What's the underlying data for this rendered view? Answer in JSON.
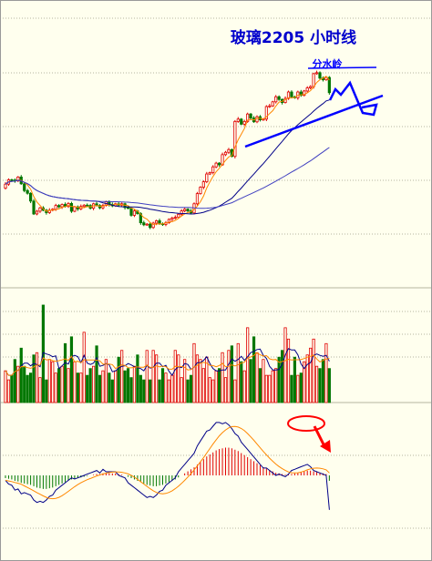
{
  "chart_data": {
    "type": "candlestick",
    "title": "玻璃2205  小时线",
    "annotation": "分水岭",
    "colors": {
      "background": "#ffffee",
      "up": "#e00000",
      "down": "#007700",
      "ma_fast": "#ff8800",
      "ma_slow": "#000088",
      "annotation_line": "#0000ff",
      "title": "#0000cc",
      "highlight": "#ff0000",
      "grid": "#b4b4a0"
    },
    "candles": {
      "close": [
        2290,
        2303,
        2302,
        2300,
        2311,
        2291,
        2271,
        2263,
        2240,
        2202,
        2210,
        2220,
        2213,
        2206,
        2213,
        2216,
        2227,
        2223,
        2230,
        2224,
        2233,
        2210,
        2223,
        2217,
        2224,
        2228,
        2227,
        2219,
        2232,
        2227,
        2220,
        2227,
        2238,
        2230,
        2226,
        2232,
        2228,
        2232,
        2221,
        2219,
        2198,
        2211,
        2203,
        2176,
        2170,
        2172,
        2162,
        2175,
        2182,
        2173,
        2171,
        2176,
        2186,
        2190,
        2192,
        2201,
        2211,
        2216,
        2211,
        2205,
        2232,
        2262,
        2281,
        2297,
        2320,
        2324,
        2341,
        2352,
        2347,
        2377,
        2384,
        2392,
        2372,
        2475,
        2482,
        2467,
        2475,
        2497,
        2485,
        2474,
        2489,
        2480,
        2482,
        2519,
        2521,
        2533,
        2548,
        2540,
        2531,
        2543,
        2562,
        2548,
        2545,
        2562,
        2552,
        2565,
        2574,
        2578,
        2616,
        2619,
        2603,
        2598,
        2605,
        2560
      ],
      "open": [
        2278,
        2290,
        2303,
        2302,
        2300,
        2311,
        2291,
        2271,
        2263,
        2240,
        2202,
        2210,
        2220,
        2213,
        2206,
        2213,
        2216,
        2227,
        2223,
        2230,
        2224,
        2233,
        2210,
        2223,
        2217,
        2224,
        2228,
        2227,
        2219,
        2232,
        2227,
        2220,
        2227,
        2238,
        2230,
        2226,
        2232,
        2228,
        2232,
        2221,
        2219,
        2198,
        2211,
        2203,
        2176,
        2170,
        2172,
        2162,
        2175,
        2182,
        2173,
        2171,
        2176,
        2186,
        2190,
        2192,
        2201,
        2211,
        2216,
        2211,
        2205,
        2232,
        2262,
        2281,
        2297,
        2320,
        2324,
        2341,
        2352,
        2347,
        2377,
        2384,
        2392,
        2372,
        2475,
        2482,
        2467,
        2475,
        2497,
        2485,
        2474,
        2489,
        2480,
        2482,
        2519,
        2521,
        2533,
        2548,
        2540,
        2531,
        2543,
        2562,
        2548,
        2545,
        2562,
        2552,
        2565,
        2574,
        2578,
        2616,
        2619,
        2603,
        2598,
        2605
      ],
      "high_pad": [
        6,
        4,
        3,
        5,
        3,
        6,
        4,
        5,
        3,
        6,
        4,
        3,
        5,
        4,
        6,
        3,
        5,
        4,
        3,
        6,
        4,
        5,
        3,
        4,
        6,
        3,
        5,
        4,
        3,
        6,
        4,
        5,
        3,
        4,
        6,
        3,
        5,
        4,
        3,
        6,
        4,
        5,
        3,
        4,
        6,
        3,
        5,
        4,
        3,
        6,
        4,
        5,
        3,
        4,
        6,
        3,
        5,
        4,
        3,
        6,
        4,
        5,
        3,
        4,
        6,
        3,
        5,
        4,
        3,
        6,
        4,
        5,
        3,
        4,
        6,
        3,
        5,
        4,
        3,
        6,
        4,
        5,
        3,
        4,
        6,
        3,
        5,
        4,
        3,
        6,
        4,
        5,
        3,
        4,
        6,
        3,
        5,
        4,
        3,
        6,
        4,
        5,
        3,
        4
      ],
      "low_pad": [
        4,
        5,
        3,
        6,
        4,
        3,
        5,
        4,
        6,
        3,
        4,
        5,
        3,
        6,
        4,
        3,
        5,
        4,
        6,
        3,
        4,
        5,
        3,
        6,
        4,
        3,
        5,
        4,
        6,
        3,
        4,
        5,
        3,
        6,
        4,
        3,
        5,
        4,
        6,
        3,
        4,
        5,
        3,
        6,
        4,
        3,
        5,
        4,
        6,
        3,
        4,
        5,
        3,
        6,
        4,
        3,
        5,
        4,
        6,
        3,
        4,
        5,
        3,
        6,
        4,
        3,
        5,
        4,
        6,
        3,
        4,
        5,
        3,
        6,
        4,
        3,
        5,
        4,
        6,
        3,
        4,
        5,
        3,
        6,
        4,
        3,
        5,
        4,
        6,
        3,
        4,
        5,
        3,
        6,
        4,
        3,
        5,
        4,
        6,
        3,
        4,
        5,
        3,
        6
      ]
    },
    "volume": [
      1.4,
      1.0,
      1.2,
      1.9,
      1.6,
      2.4,
      1.6,
      1.2,
      1.3,
      2.1,
      2.2,
      1.1,
      4.3,
      1.0,
      1.9,
      1.8,
      1.3,
      1.5,
      1.6,
      2.6,
      1.5,
      2.9,
      1.8,
      1.3,
      1.3,
      3.1,
      1.2,
      1.5,
      1.6,
      2.5,
      1.2,
      1.4,
      1.9,
      1.3,
      1.0,
      1.4,
      2.0,
      2.3,
      1.4,
      1.5,
      1.1,
      1.6,
      2.1,
      1.2,
      1.0,
      2.3,
      1.0,
      2.3,
      2.1,
      1.0,
      1.5,
      1.3,
      1.0,
      1.2,
      2.3,
      2.1,
      1.1,
      1.9,
      1.0,
      1.2,
      2.6,
      2.1,
      1.9,
      1.5,
      2.0,
      1.1,
      1.0,
      1.4,
      1.5,
      2.2,
      1.1,
      2.3,
      2.5,
      1.0,
      2.6,
      1.8,
      1.4,
      3.3,
      1.9,
      2.9,
      2.2,
      1.5,
      1.9,
      1.2,
      1.2,
      1.4,
      1.5,
      2.0,
      2.3,
      3.3,
      2.8,
      1.2,
      2.0,
      1.2,
      1.3,
      1.8,
      2.1,
      2.4,
      2.8,
      1.6,
      1.5,
      1.9,
      2.6,
      1.5
    ],
    "macd": [
      -4,
      -5,
      -6,
      -8,
      -9,
      -11,
      -12,
      -13,
      -14,
      -16,
      -18,
      -19,
      -20,
      -20,
      -19,
      -18,
      -16,
      -14,
      -12,
      -10,
      -8,
      -6,
      -5,
      -4,
      -3,
      -2,
      -1,
      0,
      1,
      2,
      2,
      3,
      3,
      3,
      3,
      3,
      2,
      1,
      0,
      -2,
      -4,
      -6,
      -8,
      -10,
      -12,
      -14,
      -15,
      -16,
      -16,
      -15,
      -14,
      -12,
      -10,
      -8,
      -6,
      -3,
      0,
      3,
      6,
      9,
      12,
      16,
      20,
      24,
      28,
      31,
      34,
      37,
      39,
      40,
      41,
      41,
      40,
      38,
      36,
      33,
      30,
      27,
      24,
      21,
      18,
      15,
      12,
      10,
      8,
      6,
      4,
      3,
      2,
      1,
      1,
      2,
      3,
      4,
      5,
      6,
      7,
      7,
      6,
      5,
      4,
      3,
      2,
      -8
    ]
  }
}
